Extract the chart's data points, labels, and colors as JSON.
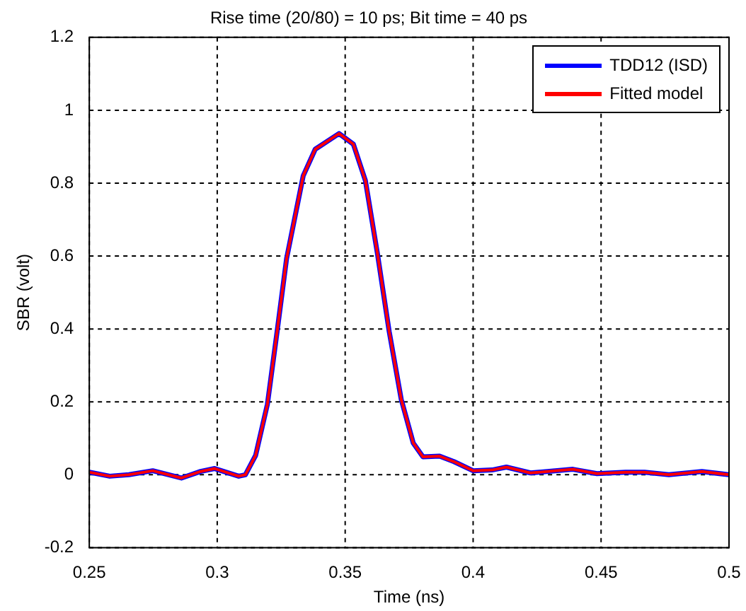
{
  "chart_data": {
    "type": "line",
    "title": "Rise time (20/80) = 10 ps; Bit time = 40 ps",
    "xlabel": "Time (ns)",
    "ylabel": "SBR (volt)",
    "x": [
      0.25,
      0.258,
      0.2655,
      0.2748,
      0.286,
      0.2935,
      0.299,
      0.3084,
      0.311,
      0.315,
      0.3196,
      0.3234,
      0.3271,
      0.3336,
      0.3383,
      0.3476,
      0.3532,
      0.3579,
      0.3626,
      0.3672,
      0.3719,
      0.3766,
      0.3804,
      0.3869,
      0.3925,
      0.4,
      0.4074,
      0.413,
      0.4224,
      0.439,
      0.4484,
      0.4596,
      0.467,
      0.4765,
      0.4894,
      0.5
    ],
    "series": [
      {
        "name": "TDD12 (ISD)",
        "color": "#0000ff",
        "values": [
          0.007,
          -0.004,
          0,
          0.011,
          -0.009,
          0.009,
          0.017,
          -0.004,
          0,
          0.053,
          0.193,
          0.393,
          0.593,
          0.82,
          0.893,
          0.936,
          0.907,
          0.807,
          0.607,
          0.393,
          0.207,
          0.087,
          0.049,
          0.051,
          0.036,
          0.011,
          0.013,
          0.021,
          0.005,
          0.015,
          0.003,
          0.007,
          0.007,
          0,
          0.009,
          0
        ]
      },
      {
        "name": "Fitted model",
        "color": "#ff0000",
        "values": [
          0.007,
          -0.004,
          0,
          0.011,
          -0.009,
          0.009,
          0.017,
          -0.004,
          0,
          0.053,
          0.193,
          0.393,
          0.593,
          0.82,
          0.893,
          0.936,
          0.907,
          0.807,
          0.607,
          0.393,
          0.207,
          0.087,
          0.049,
          0.051,
          0.036,
          0.011,
          0.013,
          0.021,
          0.005,
          0.015,
          0.003,
          0.007,
          0.007,
          0,
          0.009,
          0
        ]
      }
    ],
    "xlim": [
      0.25,
      0.5
    ],
    "xticks": [
      0.25,
      0.3,
      0.35,
      0.4,
      0.45,
      0.5
    ],
    "ylim": [
      -0.2,
      1.2
    ],
    "yticks": [
      -0.2,
      0,
      0.2,
      0.4,
      0.6,
      0.8,
      1,
      1.2
    ],
    "grid": true,
    "legend": "top right",
    "marker": "none",
    "line_style": "solid"
  }
}
